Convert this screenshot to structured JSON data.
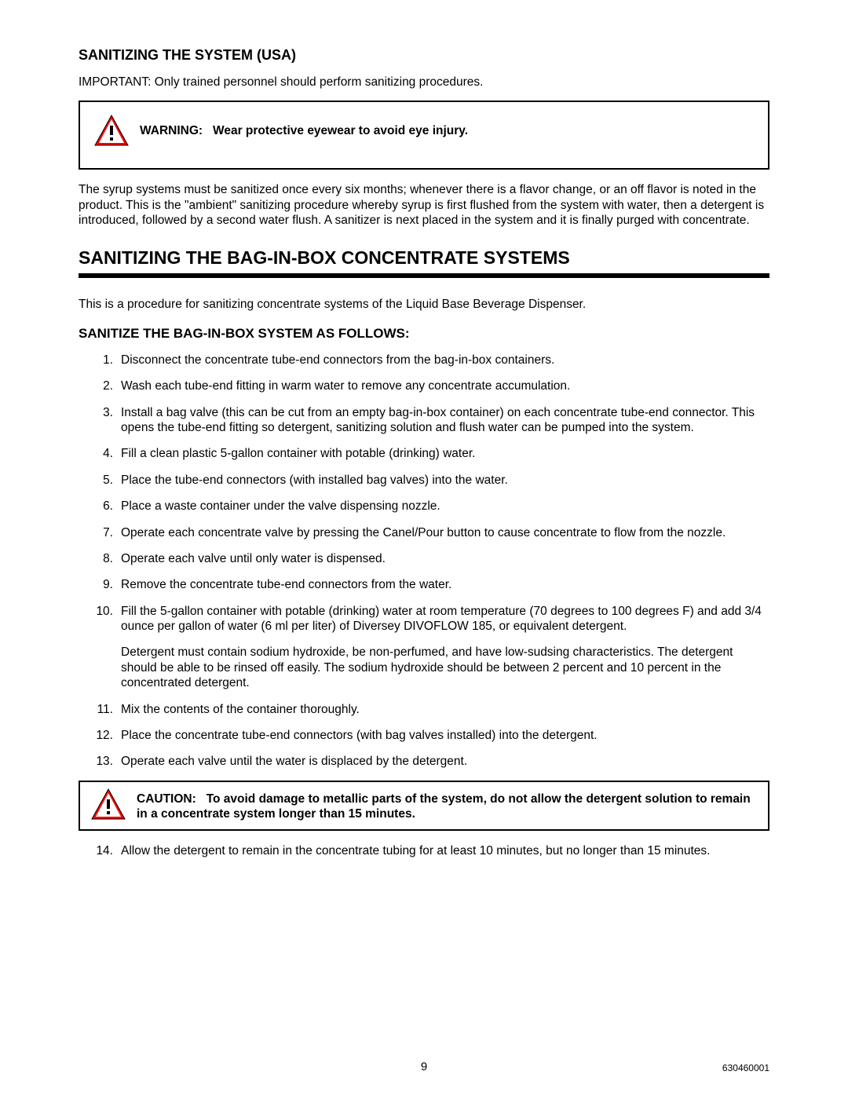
{
  "heading1": "SANITIZING THE SYSTEM (USA)",
  "important_line": "IMPORTANT: Only trained personnel should perform sanitizing procedures.",
  "warning_box": {
    "label": "WARNING:",
    "text": "Wear protective eyewear to avoid eye injury.",
    "icon_fill": "#ff0000",
    "icon_stroke": "#000000",
    "bang_color": "#000000"
  },
  "para_after_warning": "The syrup systems must be sanitized once every six months; whenever there is a flavor change, or an off flavor is noted in the product. This is the \"ambient\" sanitizing procedure whereby syrup is first flushed from the system with water, then a detergent is introduced, followed by a second water flush. A sanitizer is next placed in the system and it is finally purged with concentrate.",
  "section_title": "SANITIZING THE BAG-IN-BOX CONCENTRATE SYSTEMS",
  "section_intro": "This is a procedure for sanitizing concentrate systems of the Liquid Base Beverage Dispenser.",
  "sub_heading": "SANITIZE THE BAG-IN-BOX SYSTEM AS FOLLOWS:",
  "steps": [
    {
      "n": "1.",
      "t": "Disconnect the concentrate tube-end connectors from the bag-in-box containers."
    },
    {
      "n": "2.",
      "t": "Wash each tube-end fitting in warm water to remove any concentrate accumulation."
    },
    {
      "n": "3.",
      "t": "Install a bag valve (this can be cut from an empty bag-in-box container) on each concentrate tube-end connector. This opens the tube-end fitting so detergent, sanitizing solution and flush water can be pumped into the system."
    },
    {
      "n": "4.",
      "t": "Fill a clean plastic 5-gallon container with potable (drinking) water."
    },
    {
      "n": "5.",
      "t": "Place the tube-end connectors (with installed bag valves) into the water."
    },
    {
      "n": "6.",
      "t": "Place a waste container under the valve dispensing nozzle."
    },
    {
      "n": "7.",
      "t": "Operate each concentrate valve by pressing the Canel/Pour button to cause concentrate to flow from the nozzle."
    },
    {
      "n": "8.",
      "t": "Operate each valve until only water is dispensed."
    },
    {
      "n": "9.",
      "t": "Remove the concentrate tube-end connectors from the water."
    },
    {
      "n": "10.",
      "t": "Fill the 5-gallon container with potable (drinking) water at room temperature (70 degrees to 100 degrees F) and add 3/4 ounce per gallon of water (6 ml per liter) of Diversey DIVOFLOW 185, or equivalent detergent.",
      "sub": "Detergent must contain sodium hydroxide, be non-perfumed, and have low-sudsing characteristics. The detergent should be able to be rinsed off easily. The sodium hydroxide should be between 2 percent and 10 percent in the concentrated detergent."
    },
    {
      "n": "11.",
      "t": "Mix the contents of the container thoroughly."
    },
    {
      "n": "12.",
      "t": "Place the concentrate tube-end connectors (with bag valves installed) into the detergent."
    },
    {
      "n": "13.",
      "t": "Operate each valve until the water is displaced by the detergent."
    }
  ],
  "caution_box": {
    "label": "CAUTION:",
    "text": "To avoid damage to metallic parts of the system, do not allow the detergent solution to remain in a concentrate system longer than 15 minutes.",
    "icon_fill": "#ff0000",
    "icon_stroke": "#000000",
    "bang_color": "#000000"
  },
  "steps_after_caution": [
    {
      "n": "14.",
      "t": "Allow the detergent to remain in the concentrate tubing for at least 10 minutes, but no longer than 15 minutes."
    }
  ],
  "page_number": "9",
  "doc_id": "630460001"
}
